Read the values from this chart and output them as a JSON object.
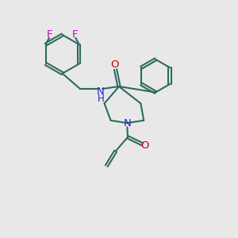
{
  "bg_color": "#e8e8e8",
  "bond_color": "#2d6b5e",
  "N_color": "#2222cc",
  "O_color": "#cc0000",
  "F_color": "#cc00cc",
  "line_width": 1.5,
  "font_size": 9.5,
  "xlim": [
    0,
    10
  ],
  "ylim": [
    0,
    10
  ]
}
